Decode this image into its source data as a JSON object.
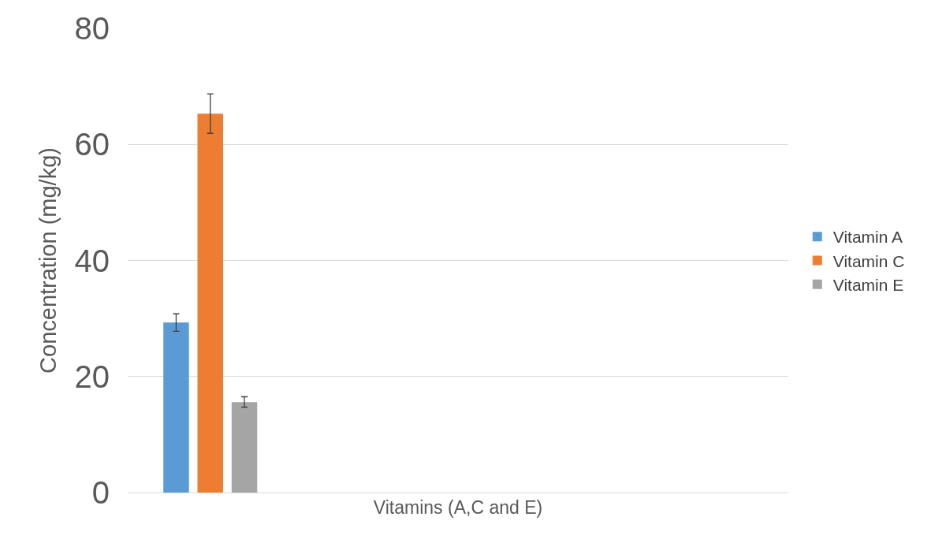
{
  "chart_data": {
    "type": "bar",
    "xlabel": "Vitamins (A,C and E)",
    "ylabel": "Concentration (mg/kg)",
    "categories": [
      null,
      null,
      null,
      null
    ],
    "series": [
      {
        "name": "Vitamin A",
        "color": "#5b9bd5",
        "values": [
          29.3,
          null,
          null,
          null
        ],
        "errors": [
          1.5,
          null,
          null,
          null
        ]
      },
      {
        "name": "Vitamin C",
        "color": "#ed7d31",
        "values": [
          65.3,
          null,
          null,
          null
        ],
        "errors": [
          3.4,
          null,
          null,
          null
        ]
      },
      {
        "name": "Vitamin E",
        "color": "#a5a5a5",
        "values": [
          15.6,
          null,
          null,
          null
        ],
        "errors": [
          0.9,
          null,
          null,
          null
        ]
      }
    ],
    "ylim": [
      0,
      80
    ],
    "yticks": [
      0,
      20,
      40,
      60,
      80
    ],
    "grid": "y",
    "legend": "right",
    "tick_labels": "y"
  }
}
